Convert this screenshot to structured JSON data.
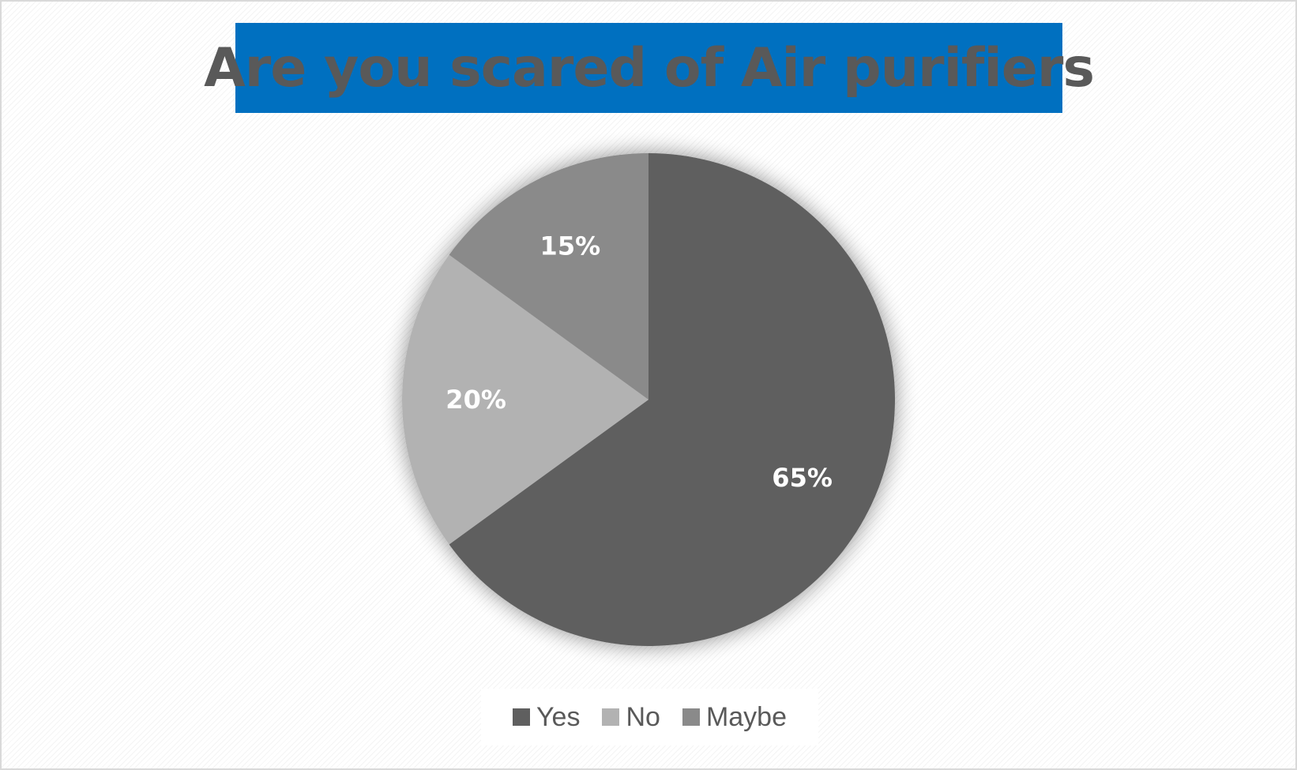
{
  "chart_data": {
    "type": "pie",
    "title": "Are you scared of Air purifiers",
    "categories": [
      "Yes",
      "No",
      "Maybe"
    ],
    "values": [
      65,
      20,
      15
    ],
    "data_labels": [
      "65%",
      "20%",
      "15%"
    ],
    "colors": [
      "#5f5f5f",
      "#b2b2b2",
      "#8a8a8a"
    ],
    "legend_position": "bottom",
    "title_background": "#0070c0"
  }
}
